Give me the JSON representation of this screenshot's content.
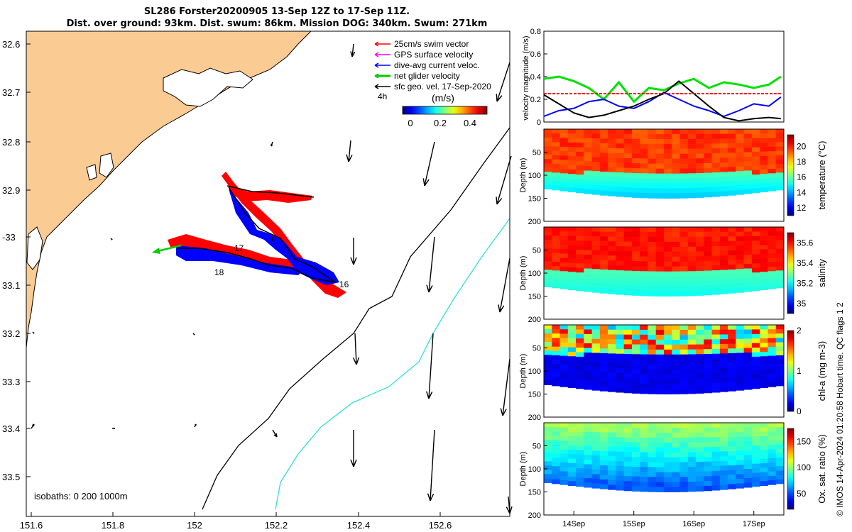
{
  "title_line1": "SL286 Forster20200905 13-Sep 12Z to 17-Sep 11Z.",
  "title_line2": "Dist. over ground: 93km. Dist. swum: 86km. Mission DOG: 340km. Swum: 271km",
  "map": {
    "lat_ticks": [
      "32.6",
      "32.7",
      "32.8",
      "32.9",
      "-33",
      "33.1",
      "33.2",
      "33.3",
      "33.4",
      "33.5"
    ],
    "lon_ticks": [
      "151.6",
      "151.8",
      "152",
      "152.2",
      "152.4",
      "152.6"
    ],
    "isobaths_label": "isobaths: 0   200  1000m",
    "legend": [
      {
        "label": "25cm/s swim vector",
        "color": "#ff0000"
      },
      {
        "label": "GPS surface velocity",
        "color": "#ff00ff"
      },
      {
        "label": "dive-avg current veloc.",
        "color": "#0000ff"
      },
      {
        "label": "net glider velocity",
        "color": "#00cc00"
      },
      {
        "label": "sfc geo. vel. 17-Sep-2020",
        "color": "#000000"
      }
    ],
    "time_label": "4h",
    "colorbar_title": "(m/s)",
    "colorbar_ticks": [
      "0",
      "0.2",
      "0.4"
    ],
    "day_labels": [
      "16",
      "17",
      "18"
    ],
    "colors": {
      "land": "#fbcb94",
      "shelf_isobath": "#000000",
      "deep_isobath": "#33dddd"
    }
  },
  "chart_data": [
    {
      "type": "line",
      "ylabel": "velocity magnitude (m/s)",
      "ylim": [
        0,
        0.8
      ],
      "yticks": [
        "0",
        "0.2",
        "0.4",
        "0.6",
        "0.8"
      ],
      "x": [
        13.5,
        13.75,
        14.0,
        14.25,
        14.5,
        14.75,
        15.0,
        15.25,
        15.5,
        15.75,
        16.0,
        16.25,
        16.5,
        16.75,
        17.0,
        17.25,
        17.45
      ],
      "series": [
        {
          "color": "#00e000",
          "values": [
            0.38,
            0.4,
            0.36,
            0.3,
            0.2,
            0.35,
            0.18,
            0.3,
            0.28,
            0.34,
            0.38,
            0.3,
            0.35,
            0.33,
            0.3,
            0.33,
            0.4
          ]
        },
        {
          "color": "#0000ff",
          "values": [
            0.05,
            0.1,
            0.12,
            0.18,
            0.2,
            0.14,
            0.12,
            0.18,
            0.26,
            0.2,
            0.14,
            0.1,
            0.05,
            0.1,
            0.16,
            0.14,
            0.22
          ]
        },
        {
          "color": "#000000",
          "values": [
            0.24,
            0.16,
            0.08,
            0.04,
            0.06,
            0.1,
            0.14,
            0.2,
            0.25,
            0.36,
            0.25,
            0.14,
            0.04,
            0.01,
            0.03,
            0.04,
            0.03
          ]
        },
        {
          "color": "#ff0000",
          "dashed": true,
          "values": [
            0.25,
            0.25,
            0.25,
            0.25,
            0.25,
            0.25,
            0.25,
            0.25,
            0.25,
            0.25,
            0.25,
            0.25,
            0.25,
            0.25,
            0.25,
            0.25,
            0.25
          ]
        }
      ]
    },
    {
      "type": "heatmap",
      "ylabel": "Depth (m)",
      "yticks": [
        "50",
        "100",
        "150",
        "200"
      ],
      "colorbar_label": "temperature (°C)",
      "colorbar_ticks": [
        "12",
        "14",
        "16",
        "18",
        "20"
      ],
      "clim": [
        11,
        21.5
      ],
      "mixed_layer_depth_m": 90,
      "bottom_depth_m": 130
    },
    {
      "type": "heatmap",
      "ylabel": "Depth (m)",
      "yticks": [
        "50",
        "100",
        "150",
        "200"
      ],
      "colorbar_label": "salinity",
      "colorbar_ticks": [
        "35",
        "35.2",
        "35.4",
        "35.6"
      ],
      "clim": [
        34.9,
        35.7
      ],
      "mixed_layer_depth_m": 90,
      "bottom_depth_m": 130
    },
    {
      "type": "heatmap",
      "ylabel": "Depth (m)",
      "yticks": [
        "50",
        "100",
        "150",
        "200"
      ],
      "colorbar_label": "chl-a (mg m-3)",
      "colorbar_ticks": [
        "0",
        "1",
        "2"
      ],
      "clim": [
        0,
        2
      ],
      "mixed_layer_depth_m": 60,
      "bottom_depth_m": 130
    },
    {
      "type": "heatmap",
      "ylabel": "Depth (m)",
      "yticks": [
        "50",
        "100",
        "150",
        "200"
      ],
      "colorbar_label": "Ox. sat. ratio (%)",
      "colorbar_ticks": [
        "50",
        "100",
        "150"
      ],
      "clim": [
        20,
        175
      ],
      "mixed_layer_depth_m": 90,
      "bottom_depth_m": 130
    }
  ],
  "x_ticks": [
    "14Sep",
    "15Sep",
    "16Sep",
    "17Sep"
  ],
  "footer": "© IMOS 14-Apr-2024 01:20:58 Hobart time. QC flags 1  2"
}
